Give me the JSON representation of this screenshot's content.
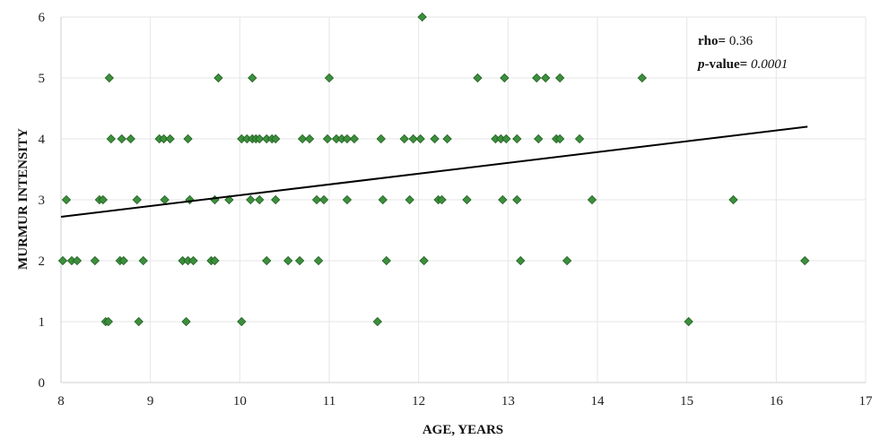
{
  "chart_data": {
    "type": "scatter",
    "title": "",
    "xlabel": "AGE, YEARS",
    "ylabel": "MURMUR INTENSITY",
    "xlim": [
      8,
      17
    ],
    "ylim": [
      0,
      6
    ],
    "xticks": [
      "8",
      "9",
      "10",
      "11",
      "12",
      "13",
      "14",
      "15",
      "16",
      "17"
    ],
    "yticks": [
      "0",
      "1",
      "2",
      "3",
      "4",
      "5",
      "6"
    ],
    "grid": true,
    "marker_color": "#3c8f3c",
    "marker_edge_color": "#1f5c1f",
    "trendline_color": "#000000",
    "annotation": {
      "rho_label": "rho=",
      "rho_value": " 0.36",
      "p_label_italic": "p",
      "p_label": "-value=",
      "p_value": " 0.0001"
    },
    "points": [
      {
        "x": 8.02,
        "y": 2
      },
      {
        "x": 8.12,
        "y": 2
      },
      {
        "x": 8.18,
        "y": 2
      },
      {
        "x": 8.38,
        "y": 2
      },
      {
        "x": 8.66,
        "y": 2
      },
      {
        "x": 8.7,
        "y": 2
      },
      {
        "x": 8.92,
        "y": 2
      },
      {
        "x": 9.36,
        "y": 2
      },
      {
        "x": 9.42,
        "y": 2
      },
      {
        "x": 9.48,
        "y": 2
      },
      {
        "x": 9.68,
        "y": 2
      },
      {
        "x": 9.72,
        "y": 2
      },
      {
        "x": 10.3,
        "y": 2
      },
      {
        "x": 10.54,
        "y": 2
      },
      {
        "x": 10.67,
        "y": 2
      },
      {
        "x": 10.88,
        "y": 2
      },
      {
        "x": 11.64,
        "y": 2
      },
      {
        "x": 12.06,
        "y": 2
      },
      {
        "x": 13.14,
        "y": 2
      },
      {
        "x": 13.66,
        "y": 2
      },
      {
        "x": 16.32,
        "y": 2
      },
      {
        "x": 8.5,
        "y": 1
      },
      {
        "x": 8.53,
        "y": 1
      },
      {
        "x": 8.87,
        "y": 1
      },
      {
        "x": 9.4,
        "y": 1
      },
      {
        "x": 10.02,
        "y": 1
      },
      {
        "x": 11.54,
        "y": 1
      },
      {
        "x": 15.02,
        "y": 1
      },
      {
        "x": 8.06,
        "y": 3
      },
      {
        "x": 8.43,
        "y": 3
      },
      {
        "x": 8.47,
        "y": 3
      },
      {
        "x": 8.85,
        "y": 3
      },
      {
        "x": 9.16,
        "y": 3
      },
      {
        "x": 9.44,
        "y": 3
      },
      {
        "x": 9.72,
        "y": 3
      },
      {
        "x": 9.88,
        "y": 3
      },
      {
        "x": 10.12,
        "y": 3
      },
      {
        "x": 10.22,
        "y": 3
      },
      {
        "x": 10.4,
        "y": 3
      },
      {
        "x": 10.86,
        "y": 3
      },
      {
        "x": 10.94,
        "y": 3
      },
      {
        "x": 11.2,
        "y": 3
      },
      {
        "x": 11.6,
        "y": 3
      },
      {
        "x": 11.9,
        "y": 3
      },
      {
        "x": 12.22,
        "y": 3
      },
      {
        "x": 12.26,
        "y": 3
      },
      {
        "x": 12.54,
        "y": 3
      },
      {
        "x": 12.94,
        "y": 3
      },
      {
        "x": 13.1,
        "y": 3
      },
      {
        "x": 13.94,
        "y": 3
      },
      {
        "x": 15.52,
        "y": 3
      },
      {
        "x": 8.56,
        "y": 4
      },
      {
        "x": 8.68,
        "y": 4
      },
      {
        "x": 8.78,
        "y": 4
      },
      {
        "x": 9.1,
        "y": 4
      },
      {
        "x": 9.15,
        "y": 4
      },
      {
        "x": 9.22,
        "y": 4
      },
      {
        "x": 9.42,
        "y": 4
      },
      {
        "x": 10.02,
        "y": 4
      },
      {
        "x": 10.08,
        "y": 4
      },
      {
        "x": 10.14,
        "y": 4
      },
      {
        "x": 10.18,
        "y": 4
      },
      {
        "x": 10.22,
        "y": 4
      },
      {
        "x": 10.3,
        "y": 4
      },
      {
        "x": 10.36,
        "y": 4
      },
      {
        "x": 10.4,
        "y": 4
      },
      {
        "x": 10.7,
        "y": 4
      },
      {
        "x": 10.78,
        "y": 4
      },
      {
        "x": 10.98,
        "y": 4
      },
      {
        "x": 11.08,
        "y": 4
      },
      {
        "x": 11.14,
        "y": 4
      },
      {
        "x": 11.2,
        "y": 4
      },
      {
        "x": 11.28,
        "y": 4
      },
      {
        "x": 11.58,
        "y": 4
      },
      {
        "x": 11.84,
        "y": 4
      },
      {
        "x": 11.94,
        "y": 4
      },
      {
        "x": 12.02,
        "y": 4
      },
      {
        "x": 12.18,
        "y": 4
      },
      {
        "x": 12.32,
        "y": 4
      },
      {
        "x": 12.86,
        "y": 4
      },
      {
        "x": 12.92,
        "y": 4
      },
      {
        "x": 12.98,
        "y": 4
      },
      {
        "x": 13.1,
        "y": 4
      },
      {
        "x": 13.34,
        "y": 4
      },
      {
        "x": 13.54,
        "y": 4
      },
      {
        "x": 13.58,
        "y": 4
      },
      {
        "x": 13.8,
        "y": 4
      },
      {
        "x": 8.54,
        "y": 5
      },
      {
        "x": 9.76,
        "y": 5
      },
      {
        "x": 10.14,
        "y": 5
      },
      {
        "x": 11.0,
        "y": 5
      },
      {
        "x": 12.66,
        "y": 5
      },
      {
        "x": 12.96,
        "y": 5
      },
      {
        "x": 13.32,
        "y": 5
      },
      {
        "x": 13.42,
        "y": 5
      },
      {
        "x": 13.58,
        "y": 5
      },
      {
        "x": 14.5,
        "y": 5
      },
      {
        "x": 12.04,
        "y": 6
      }
    ],
    "trendline": {
      "x1": 8.0,
      "y1": 2.72,
      "x2": 16.35,
      "y2": 4.2
    }
  }
}
